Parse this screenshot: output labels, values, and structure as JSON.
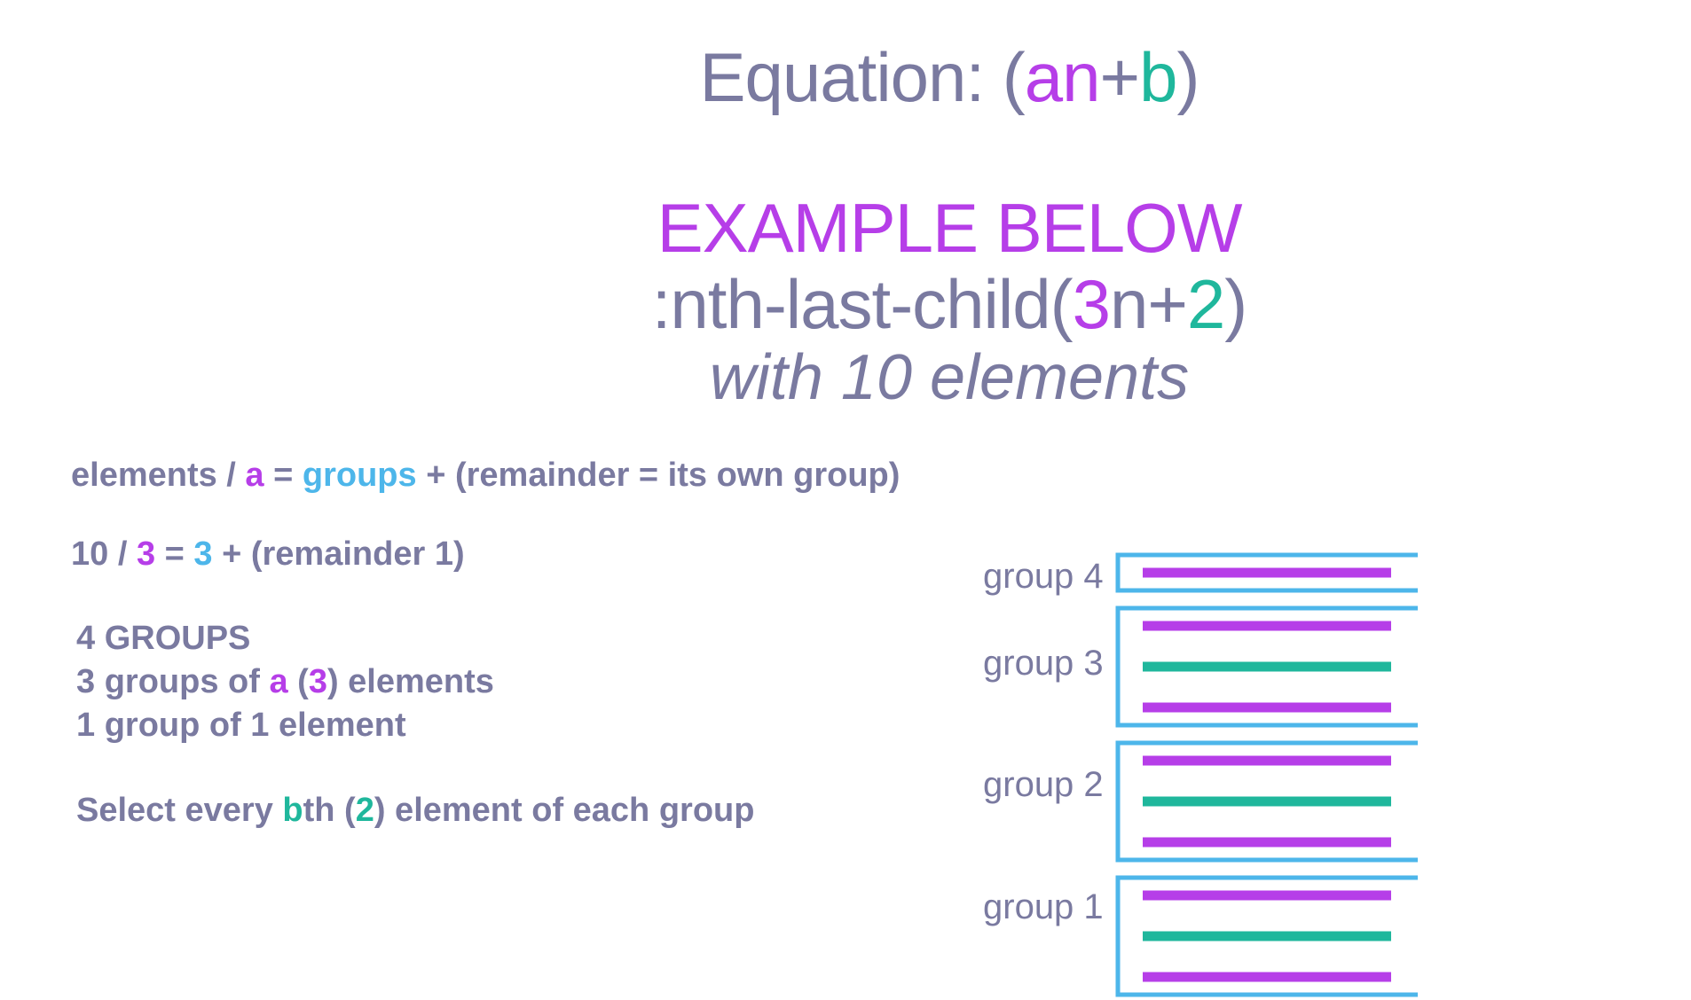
{
  "header": {
    "title": {
      "prefix": "Equation: (",
      "a": "an",
      "plus": "+",
      "b": "b",
      "suffix": ")"
    },
    "example_label": "EXAMPLE BELOW",
    "selector": {
      "prefix": ":nth-last-child(",
      "a": "3",
      "mid": "n+",
      "b": "2",
      "suffix": ")"
    },
    "subtitle": "with 10 elements"
  },
  "explanation": {
    "formula": {
      "p1": "elements / ",
      "a": "a",
      "p2": " = ",
      "groups": "groups",
      "p3": " + (remainder = its own group)"
    },
    "calc": {
      "p1": "10 / ",
      "a": "3",
      "p2": " = ",
      "groups": "3",
      "p3": " + (remainder 1)"
    },
    "groups_count": "4 GROUPS",
    "groups_of_a": {
      "p1": "3 groups of ",
      "a": "a",
      "p2": " (",
      "n": "3",
      "p3": ") elements"
    },
    "one_group": "1 group of 1 element",
    "select_line": {
      "p1": "Select every ",
      "b": "b",
      "p2": "th (",
      "n": "2",
      "p3": ") element of each group"
    }
  },
  "diagram": {
    "groups": [
      {
        "label": "group 4",
        "elements": [
          "unselected"
        ]
      },
      {
        "label": "group 3",
        "elements": [
          "unselected",
          "selected",
          "unselected"
        ]
      },
      {
        "label": "group 2",
        "elements": [
          "unselected",
          "selected",
          "unselected"
        ]
      },
      {
        "label": "group 1",
        "elements": [
          "unselected",
          "selected",
          "unselected"
        ]
      }
    ]
  },
  "colors": {
    "text": "#7a7aa0",
    "a_purple": "#b63ee8",
    "b_teal": "#1fb79c",
    "groups_blue": "#4db6ea",
    "bracket_blue": "#4db6ea",
    "unselected_bar": "#b63ee8",
    "selected_bar": "#1fb79c"
  }
}
